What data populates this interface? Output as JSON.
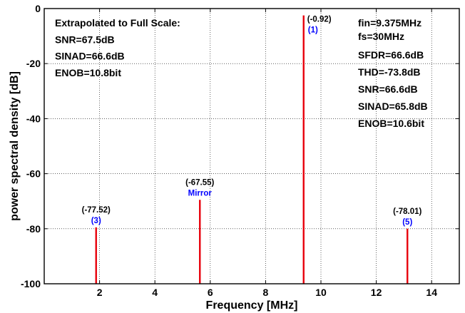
{
  "colors": {
    "spike": "#e8000b",
    "annotation": "#0000ff",
    "grid": "#000000",
    "text": "#000000"
  },
  "chart_data": {
    "type": "line",
    "title": "",
    "xlabel": "Frequency [MHz]",
    "ylabel": "power spectral density [dB]",
    "xlim": [
      0,
      15
    ],
    "ylim": [
      -100,
      0
    ],
    "x_ticks": [
      2,
      4,
      6,
      8,
      10,
      12,
      14
    ],
    "y_ticks": [
      0,
      -20,
      -40,
      -60,
      -80,
      -100
    ],
    "grid": "dotted",
    "series": [
      {
        "x": [
          1.875,
          5.625,
          9.375,
          13.125
        ],
        "values": [
          -79.5,
          -69.5,
          -2.5,
          -80
        ]
      }
    ],
    "peaks": [
      {
        "x": 1.875,
        "label_value": "(-77.52)",
        "label_tag": "(3)"
      },
      {
        "x": 5.625,
        "label_value": "(-67.55)",
        "label_tag": "Mirror"
      },
      {
        "x": 9.375,
        "label_value": "(-0.92)",
        "label_tag": "(1)"
      },
      {
        "x": 13.125,
        "label_value": "(-78.01)",
        "label_tag": "(5)"
      }
    ],
    "left_notes": [
      "Extrapolated to Full Scale:",
      "SNR=67.5dB",
      "SINAD=66.6dB",
      "ENOB=10.8bit"
    ],
    "right_notes": [
      "fin=9.375MHz",
      "fs=30MHz",
      "SFDR=66.6dB",
      "THD=-73.8dB",
      "SNR=66.6dB",
      "SINAD=65.8dB",
      "ENOB=10.6bit"
    ]
  }
}
